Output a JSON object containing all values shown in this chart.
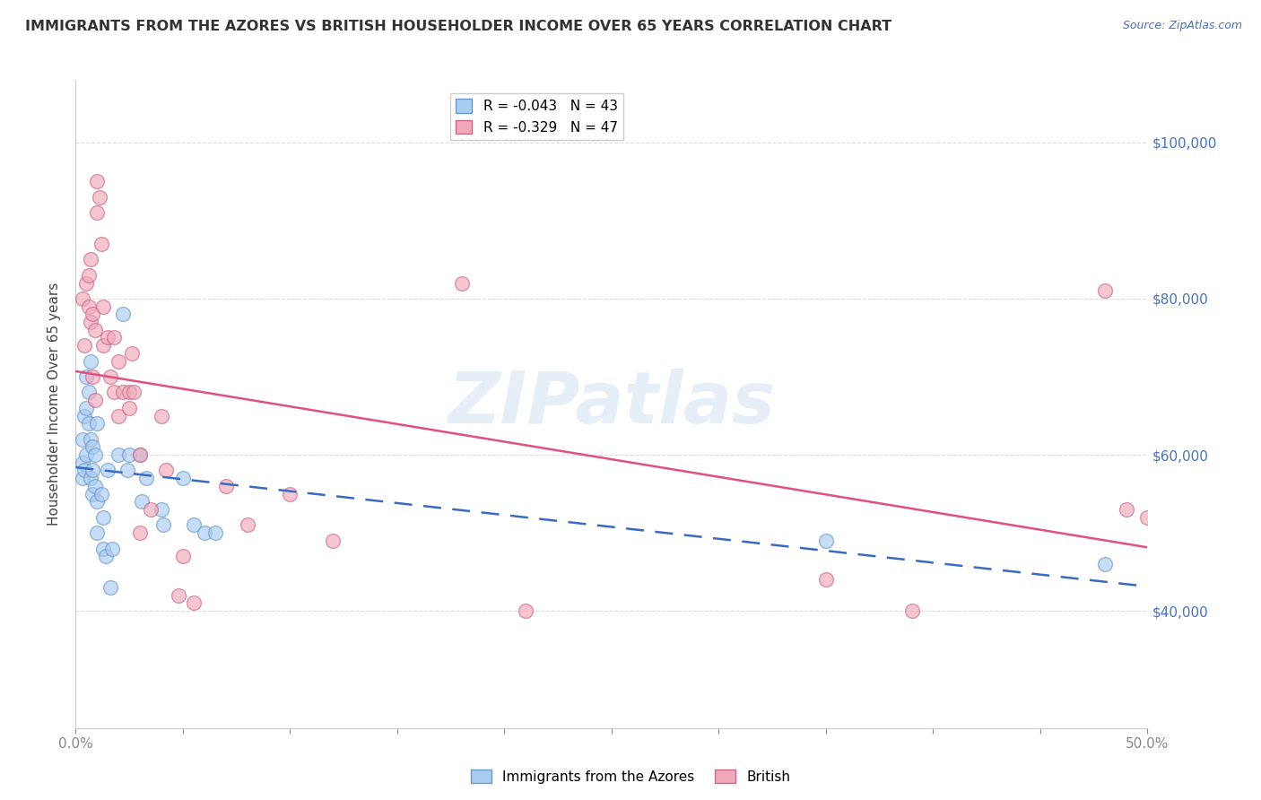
{
  "title": "IMMIGRANTS FROM THE AZORES VS BRITISH HOUSEHOLDER INCOME OVER 65 YEARS CORRELATION CHART",
  "source": "Source: ZipAtlas.com",
  "ylabel": "Householder Income Over 65 years",
  "xlim": [
    0.0,
    0.5
  ],
  "ylim": [
    25000,
    108000
  ],
  "xticks": [
    0.0,
    0.05,
    0.1,
    0.15,
    0.2,
    0.25,
    0.3,
    0.35,
    0.4,
    0.45,
    0.5
  ],
  "xticklabels_shown": {
    "0.0": "0.0%",
    "0.5": "50.0%"
  },
  "yticks": [
    40000,
    60000,
    80000,
    100000
  ],
  "yticklabels": [
    "$40,000",
    "$60,000",
    "$80,000",
    "$100,000"
  ],
  "watermark": "ZIPatlas",
  "legend_line1": "R = -0.043   N = 43",
  "legend_line2": "R = -0.329   N = 47",
  "series1_label": "Immigrants from the Azores",
  "series2_label": "British",
  "series1_color": "#aaccf0",
  "series2_color": "#f0a8b8",
  "series1_edge": "#6699cc",
  "series2_edge": "#cc6688",
  "trendline1_color": "#3a6bc4",
  "trendline2_color": "#e05080",
  "background_color": "#ffffff",
  "title_color": "#333333",
  "ylabel_color": "#444444",
  "yticklabel_color": "#4472c4",
  "xtick_color": "#888888",
  "grid_color": "#dddddd",
  "series1_x": [
    0.003,
    0.003,
    0.003,
    0.004,
    0.004,
    0.005,
    0.005,
    0.005,
    0.006,
    0.006,
    0.007,
    0.007,
    0.007,
    0.008,
    0.008,
    0.008,
    0.009,
    0.009,
    0.01,
    0.01,
    0.01,
    0.012,
    0.013,
    0.013,
    0.014,
    0.015,
    0.016,
    0.017,
    0.02,
    0.022,
    0.024,
    0.025,
    0.03,
    0.031,
    0.033,
    0.04,
    0.041,
    0.05,
    0.055,
    0.06,
    0.065,
    0.35,
    0.48
  ],
  "series1_y": [
    57000,
    62000,
    59000,
    65000,
    58000,
    70000,
    66000,
    60000,
    68000,
    64000,
    72000,
    62000,
    57000,
    61000,
    58000,
    55000,
    60000,
    56000,
    54000,
    50000,
    64000,
    55000,
    52000,
    48000,
    47000,
    58000,
    43000,
    48000,
    60000,
    78000,
    58000,
    60000,
    60000,
    54000,
    57000,
    53000,
    51000,
    57000,
    51000,
    50000,
    50000,
    49000,
    46000
  ],
  "series2_x": [
    0.003,
    0.004,
    0.005,
    0.006,
    0.006,
    0.007,
    0.007,
    0.008,
    0.008,
    0.009,
    0.009,
    0.01,
    0.01,
    0.011,
    0.012,
    0.013,
    0.013,
    0.015,
    0.016,
    0.018,
    0.018,
    0.02,
    0.02,
    0.022,
    0.025,
    0.025,
    0.026,
    0.027,
    0.03,
    0.03,
    0.035,
    0.04,
    0.042,
    0.048,
    0.05,
    0.055,
    0.07,
    0.08,
    0.1,
    0.12,
    0.18,
    0.21,
    0.35,
    0.39,
    0.48,
    0.49,
    0.5
  ],
  "series2_y": [
    80000,
    74000,
    82000,
    83000,
    79000,
    77000,
    85000,
    78000,
    70000,
    76000,
    67000,
    91000,
    95000,
    93000,
    87000,
    74000,
    79000,
    75000,
    70000,
    75000,
    68000,
    72000,
    65000,
    68000,
    68000,
    66000,
    73000,
    68000,
    60000,
    50000,
    53000,
    65000,
    58000,
    42000,
    47000,
    41000,
    56000,
    51000,
    55000,
    49000,
    82000,
    40000,
    44000,
    40000,
    81000,
    53000,
    52000
  ]
}
